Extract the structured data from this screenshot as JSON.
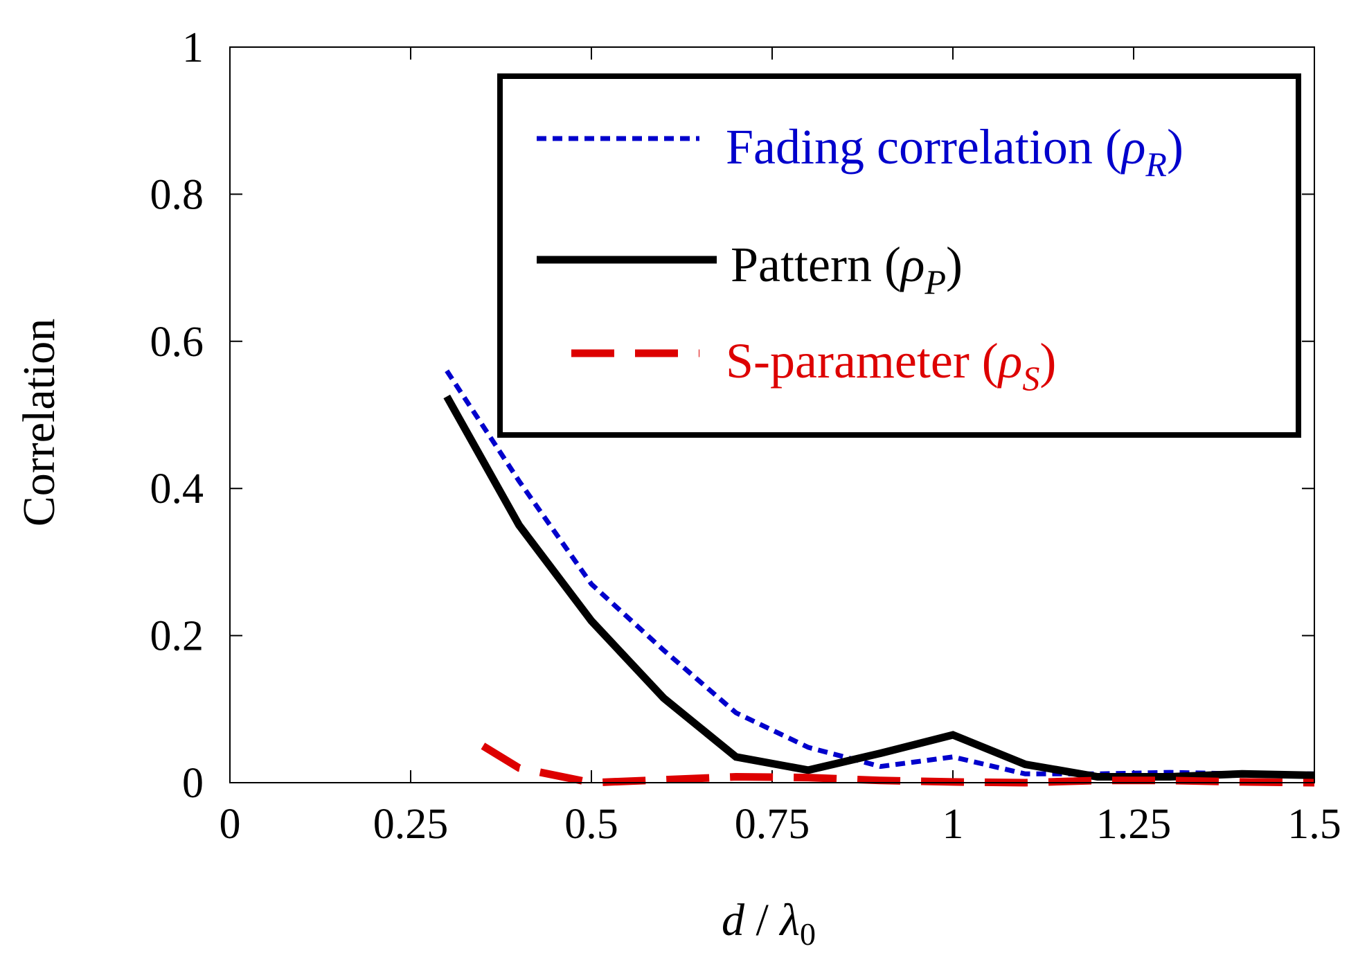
{
  "chart_data": {
    "type": "line",
    "title": "",
    "xlabel_main": "d",
    "xlabel_sep": " / ",
    "xlabel_symbol": "λ",
    "xlabel_subscript": "0",
    "ylabel": "Correlation",
    "xlim": [
      0,
      1.5
    ],
    "ylim": [
      0,
      1
    ],
    "xticks": [
      0,
      0.25,
      0.5,
      0.75,
      1,
      1.25,
      1.5
    ],
    "xtick_labels": [
      "0",
      "0.25",
      "0.5",
      "0.75",
      "1",
      "1.25",
      "1.5"
    ],
    "yticks": [
      0,
      0.2,
      0.4,
      0.6,
      0.8,
      1
    ],
    "ytick_labels": [
      "0",
      "0.2",
      "0.4",
      "0.6",
      "0.8",
      "1"
    ],
    "grid": false,
    "legend_position": "top-right",
    "series": [
      {
        "name": "Fading correlation (ρR)",
        "legend_text": "Fading correlation (",
        "legend_symbol": "ρ",
        "legend_subscript": "R",
        "legend_close": ")",
        "color": "#0000cc",
        "style": "dotted",
        "x": [
          0.3,
          0.4,
          0.5,
          0.6,
          0.7,
          0.8,
          0.9,
          1.0,
          1.1,
          1.2,
          1.3,
          1.4,
          1.5
        ],
        "y": [
          0.56,
          0.41,
          0.27,
          0.18,
          0.095,
          0.048,
          0.022,
          0.035,
          0.012,
          0.012,
          0.014,
          0.012,
          0.012
        ]
      },
      {
        "name": "Pattern (ρP)",
        "legend_text": "Pattern (",
        "legend_symbol": "ρ",
        "legend_subscript": "P",
        "legend_close": ")",
        "color": "#000000",
        "style": "solid",
        "x": [
          0.3,
          0.4,
          0.5,
          0.6,
          0.7,
          0.8,
          0.9,
          1.0,
          1.1,
          1.2,
          1.3,
          1.4,
          1.5
        ],
        "y": [
          0.525,
          0.35,
          0.22,
          0.115,
          0.035,
          0.017,
          0.04,
          0.065,
          0.025,
          0.008,
          0.008,
          0.012,
          0.01
        ]
      },
      {
        "name": "S-parameter (ρS)",
        "legend_text": "S-parameter (",
        "legend_symbol": "ρ",
        "legend_subscript": "S",
        "legend_close": ")",
        "color": "#dd0000",
        "style": "dashed",
        "x": [
          0.35,
          0.4,
          0.5,
          0.6,
          0.7,
          0.8,
          0.9,
          1.0,
          1.1,
          1.2,
          1.3,
          1.4,
          1.5
        ],
        "y": [
          0.05,
          0.02,
          0.0,
          0.004,
          0.008,
          0.007,
          0.003,
          0.001,
          0.0,
          0.003,
          0.003,
          0.001,
          0.0
        ]
      }
    ]
  }
}
